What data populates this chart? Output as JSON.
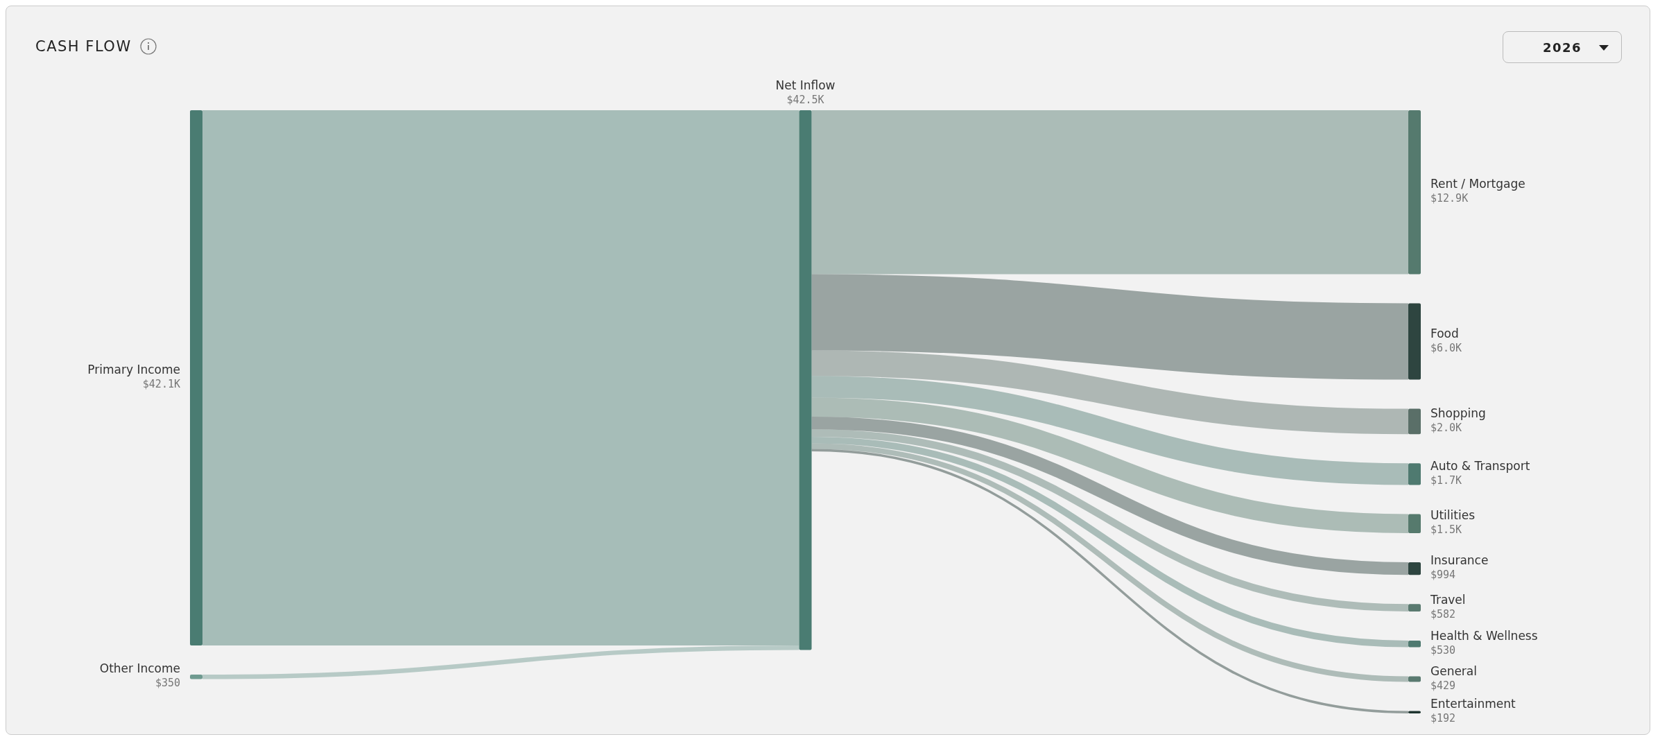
{
  "chart_data": {
    "type": "other",
    "title": "CASH FLOW",
    "subtitle": "2026",
    "categories": [
      "Primary Income",
      "Other Income",
      "Net Inflow",
      "Rent / Mortgage",
      "Food",
      "Shopping",
      "Auto & Transport",
      "Utilities",
      "Insurance",
      "Travel",
      "Health & Wellness",
      "General",
      "Entertainment"
    ],
    "colors": [
      "#4a7c72",
      "#6f9a90",
      "#4a7c72",
      "#557a6e",
      "#2e4540",
      "#5a6f68",
      "#4f7a70",
      "#567a6d",
      "#2e4540",
      "#5a7a70",
      "#4f7a70",
      "#5a7a70",
      "#1e3530"
    ],
    "series": [
      {
        "values": [
          42100,
          350,
          null,
          null,
          null,
          null,
          null,
          null,
          null,
          null,
          null,
          null,
          null
        ],
        "value_labels": [
          "$42.1K",
          "$350",
          null,
          null,
          null,
          null,
          null,
          null,
          null,
          null,
          null,
          null,
          null
        ]
      },
      {
        "values": [
          null,
          null,
          42500,
          null,
          null,
          null,
          null,
          null,
          null,
          null,
          null,
          null,
          null
        ],
        "value_labels": [
          null,
          null,
          "$42.5K",
          null,
          null,
          null,
          null,
          null,
          null,
          null,
          null,
          null,
          null
        ]
      },
      {
        "values": [
          null,
          null,
          null,
          12900,
          6000,
          2000,
          1700,
          1500,
          994,
          582,
          530,
          429,
          192
        ],
        "value_labels": [
          null,
          null,
          null,
          "$12.9K",
          "$6.0K",
          "$2.0K",
          "$1.7K",
          "$1.5K",
          "$994",
          "$582",
          "$530",
          "$429",
          "$192"
        ]
      }
    ]
  }
}
